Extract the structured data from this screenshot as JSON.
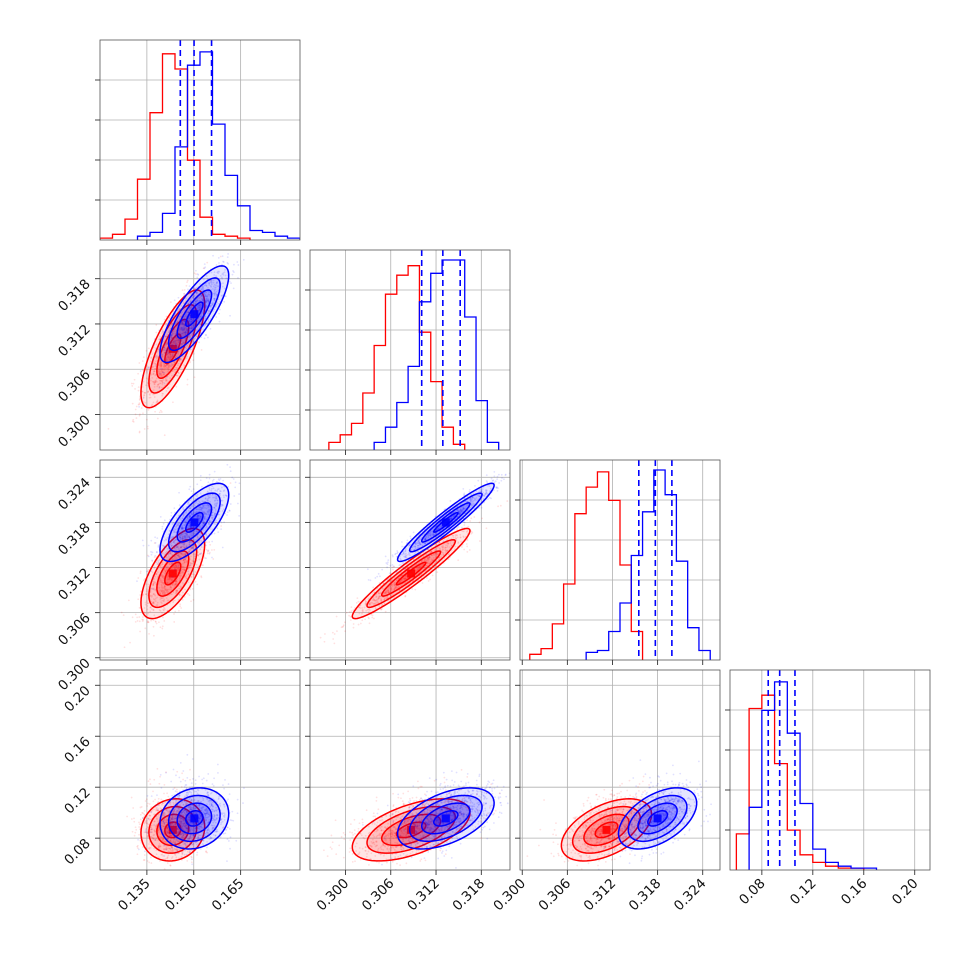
{
  "chart_data": {
    "type": "corner",
    "parameters": [
      "p1",
      "p2",
      "p3",
      "p4"
    ],
    "axes": {
      "p1": {
        "range": [
          0.12,
          0.184
        ],
        "ticks": [
          0.135,
          0.15,
          0.165
        ],
        "tick_labels": [
          "0.135",
          "0.150",
          "0.165"
        ]
      },
      "p2": {
        "range": [
          0.2953,
          0.3218
        ],
        "ticks": [
          0.3,
          0.306,
          0.312,
          0.318
        ],
        "tick_labels": [
          "0.300",
          "0.306",
          "0.312",
          "0.318"
        ]
      },
      "p3": {
        "range": [
          0.2997,
          0.3263
        ],
        "ticks": [
          0.3,
          0.306,
          0.312,
          0.318,
          0.324
        ],
        "tick_labels": [
          "0.300",
          "0.306",
          "0.312",
          "0.318",
          "0.324"
        ]
      },
      "p4": {
        "range": [
          0.055,
          0.212
        ],
        "ticks": [
          0.08,
          0.12,
          0.16,
          0.2
        ],
        "tick_labels": [
          "0.08",
          "0.12",
          "0.16",
          "0.20"
        ]
      }
    },
    "series": [
      {
        "color": "#ff0000",
        "means": [
          0.1433,
          0.3087,
          0.3112,
          0.0865
        ],
        "sigmas": [
          0.0051,
          0.0039,
          0.003,
          0.0122
        ],
        "correlations": {
          "p1-p2": 0.75,
          "p1-p3": 0.65,
          "p2-p3": 0.95,
          "p1-p4": 0.1,
          "p2-p4": 0.55,
          "p3-p4": 0.5
        },
        "histograms": {
          "p1": {
            "edges": [
              0.12,
              0.124,
              0.128,
              0.132,
              0.136,
              0.14,
              0.144,
              0.148,
              0.152,
              0.156,
              0.16,
              0.164,
              0.168
            ],
            "counts": [
              0.01,
              0.03,
              0.11,
              0.32,
              0.67,
              0.98,
              0.9,
              0.42,
              0.12,
              0.03,
              0.02,
              0.01
            ]
          },
          "p2": {
            "edges": [
              0.2978,
              0.2993,
              0.3008,
              0.3023,
              0.3038,
              0.3053,
              0.3068,
              0.3083,
              0.3098,
              0.3113,
              0.3128,
              0.3143,
              0.3158
            ],
            "counts": [
              0.04,
              0.08,
              0.14,
              0.3,
              0.55,
              0.82,
              0.92,
              0.97,
              0.62,
              0.36,
              0.12,
              0.03
            ]
          },
          "p3": {
            "edges": [
              0.301,
              0.3025,
              0.304,
              0.3055,
              0.307,
              0.3085,
              0.31,
              0.3115,
              0.313,
              0.3145,
              0.316
            ],
            "counts": [
              0.03,
              0.06,
              0.19,
              0.4,
              0.77,
              0.91,
              0.99,
              0.84,
              0.5,
              0.15
            ]
          },
          "p4": {
            "edges": [
              0.06,
              0.07,
              0.08,
              0.09,
              0.1,
              0.11,
              0.12,
              0.13,
              0.14,
              0.15,
              0.16
            ],
            "counts": [
              0.19,
              0.85,
              0.92,
              0.56,
              0.21,
              0.08,
              0.04,
              0.02,
              0.01,
              0.01
            ]
          }
        }
      },
      {
        "color": "#0000ff",
        "means": [
          0.1502,
          0.3133,
          0.318,
          0.0955
        ],
        "sigmas": [
          0.0055,
          0.0032,
          0.0026,
          0.012
        ],
        "correlations": {
          "p1-p2": 0.8,
          "p1-p3": 0.7,
          "p2-p3": 0.95,
          "p1-p4": 0.15,
          "p2-p4": 0.5,
          "p3-p4": 0.5
        },
        "quantiles": {
          "p1": [
            0.1457,
            0.1501,
            0.1557
          ],
          "p2": [
            0.3101,
            0.3129,
            0.3152
          ],
          "p3": [
            0.3155,
            0.3177,
            0.3199
          ],
          "p4": [
            0.085,
            0.094,
            0.106
          ]
        },
        "histograms": {
          "p1": {
            "edges": [
              0.132,
              0.136,
              0.14,
              0.144,
              0.148,
              0.152,
              0.156,
              0.16,
              0.164,
              0.168,
              0.172,
              0.176,
              0.18,
              0.184
            ],
            "counts": [
              0.02,
              0.04,
              0.14,
              0.49,
              0.92,
              0.99,
              0.61,
              0.34,
              0.18,
              0.05,
              0.04,
              0.02,
              0.01
            ]
          },
          "p2": {
            "edges": [
              0.3038,
              0.3053,
              0.3068,
              0.3083,
              0.3098,
              0.3113,
              0.3128,
              0.3143,
              0.3158,
              0.3173,
              0.3188,
              0.3203
            ],
            "counts": [
              0.04,
              0.12,
              0.25,
              0.44,
              0.78,
              0.93,
              1.0,
              1.0,
              0.7,
              0.26,
              0.04
            ]
          },
          "p3": {
            "edges": [
              0.3085,
              0.31,
              0.3115,
              0.313,
              0.3145,
              0.316,
              0.3175,
              0.319,
              0.3205,
              0.322,
              0.3235,
              0.325
            ],
            "counts": [
              0.04,
              0.05,
              0.15,
              0.3,
              0.55,
              0.78,
              1.0,
              0.87,
              0.52,
              0.17,
              0.05
            ]
          },
          "p4": {
            "edges": [
              0.07,
              0.08,
              0.09,
              0.1,
              0.11,
              0.12,
              0.13,
              0.14,
              0.15,
              0.16,
              0.17
            ],
            "counts": [
              0.33,
              0.84,
              0.99,
              0.72,
              0.35,
              0.11,
              0.04,
              0.02,
              0.01,
              0.01
            ]
          }
        }
      }
    ],
    "histogram_quantiles_style": "dashed",
    "contour_levels_sigma": [
      0.5,
      1.0,
      1.5,
      2.0
    ],
    "grid": true,
    "legend": "none"
  }
}
